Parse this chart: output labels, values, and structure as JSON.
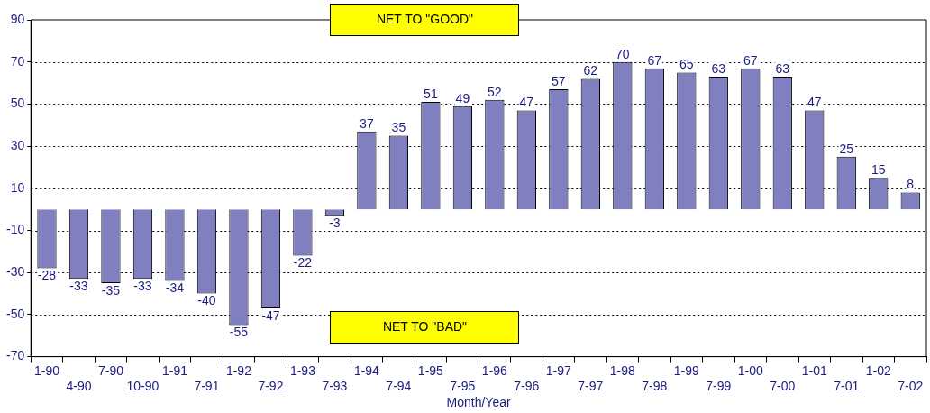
{
  "chart_data": {
    "type": "bar",
    "xlabel": "Month/Year",
    "categories": [
      "1-90",
      "4-90",
      "7-90",
      "10-90",
      "1-91",
      "7-91",
      "1-92",
      "7-92",
      "1-93",
      "7-93",
      "1-94",
      "7-94",
      "1-95",
      "7-95",
      "1-96",
      "7-96",
      "1-97",
      "7-97",
      "1-98",
      "7-98",
      "1-99",
      "7-99",
      "1-00",
      "7-00",
      "1-01",
      "7-01",
      "1-02",
      "7-02"
    ],
    "values": [
      -28,
      -33,
      -35,
      -33,
      -34,
      -40,
      -55,
      -47,
      -22,
      -3,
      37,
      35,
      51,
      49,
      52,
      47,
      57,
      62,
      70,
      67,
      65,
      63,
      67,
      63,
      47,
      25,
      15,
      8
    ],
    "color": "#8080c0",
    "ylim": [
      -70,
      90
    ],
    "yticks": [
      -70,
      -50,
      -30,
      -10,
      10,
      30,
      50,
      70,
      90
    ],
    "grid": "y",
    "data_labels": true,
    "annotations": [
      "NET TO \"GOOD\"",
      "NET TO \"BAD\""
    ]
  }
}
